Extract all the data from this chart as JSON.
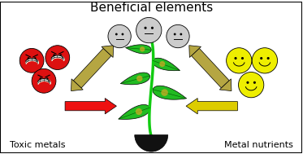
{
  "title": "Beneficial elements",
  "title_fontsize": 11,
  "label_toxic": "Toxic metals",
  "label_nutrients": "Metal nutrients",
  "bg_color": "#ffffff",
  "border_color": "#000000",
  "arrow_color_red": "#ee1111",
  "arrow_color_yellow": "#ddcc00",
  "arrow_color_tan": "#b5a642",
  "smiley_red_color": "#dd1111",
  "smiley_yellow_color": "#eeee00",
  "smiley_neutral_color": "#cccccc",
  "plant_stem_color": "#11cc11",
  "plant_leaf_color": "#22bb22",
  "plant_spot_color": "#ccaa22",
  "soil_color": "#111111",
  "figw": 3.73,
  "figh": 1.89,
  "dpi": 100
}
